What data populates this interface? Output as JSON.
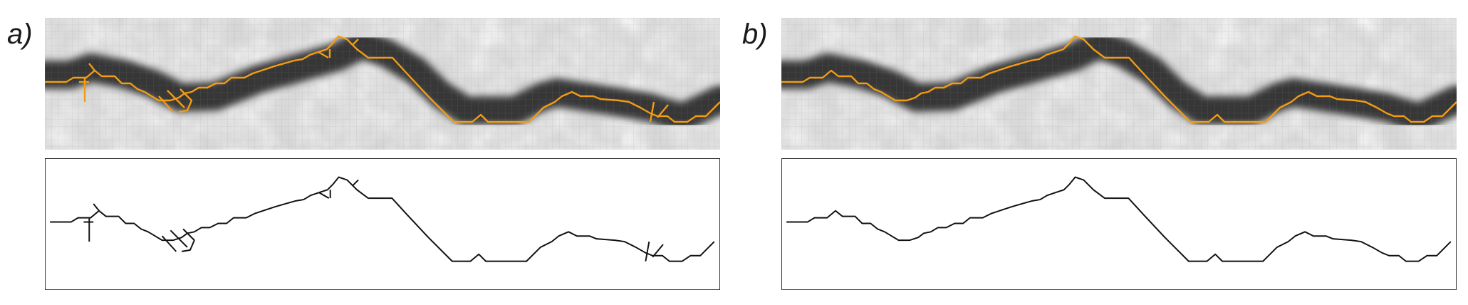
{
  "panels": [
    {
      "id": "a",
      "label": "a)",
      "variant": "noisy"
    },
    {
      "id": "b",
      "label": "b)",
      "variant": "clean"
    }
  ],
  "colors": {
    "overlay": "#f39c12",
    "skeleton": "#111111",
    "crack": "#2b2b2b",
    "background_light": "#e6e6e6",
    "background_dark": "#a8a8a8",
    "grid": "#9a9a9a"
  },
  "icons": []
}
